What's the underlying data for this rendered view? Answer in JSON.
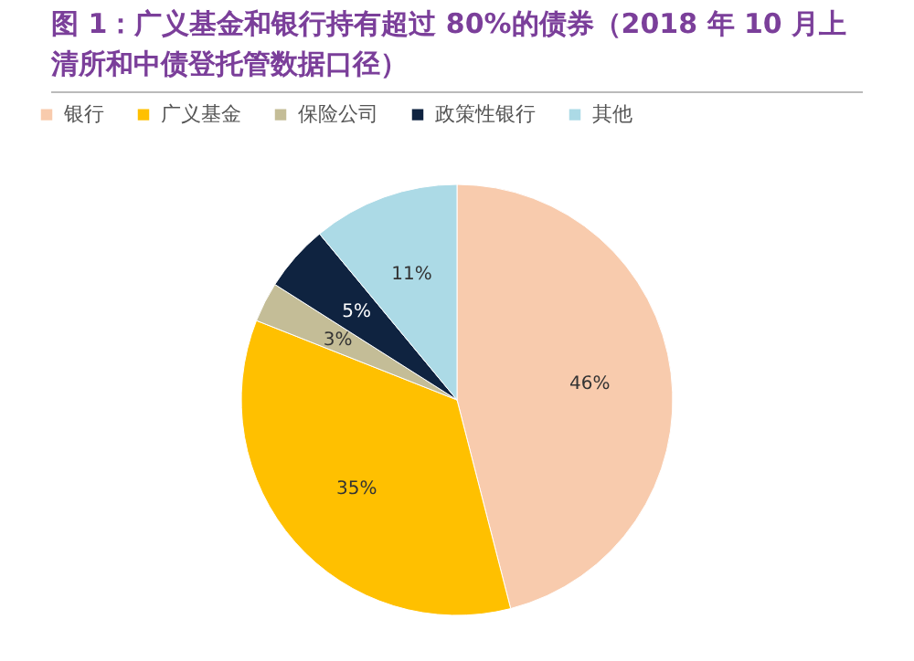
{
  "chart_data": {
    "type": "pie",
    "title": "图 1：广义基金和银行持有超过 80%的债券（2018 年 10 月上清所和中债登托管数据口径）",
    "categories": [
      "银行",
      "广义基金",
      "保险公司",
      "政策性银行",
      "其他"
    ],
    "values": [
      46,
      35,
      3,
      5,
      11
    ],
    "colors": [
      "#f8cbad",
      "#ffc000",
      "#c4bd97",
      "#0f2340",
      "#acdae6"
    ],
    "value_labels": [
      "46%",
      "35%",
      "3%",
      "5%",
      "11%"
    ],
    "legend": "top"
  }
}
